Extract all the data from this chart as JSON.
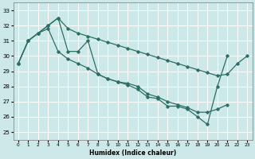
{
  "xlabel": "Humidex (Indice chaleur)",
  "xlim": [
    -0.5,
    23.5
  ],
  "ylim": [
    24.5,
    33.5
  ],
  "yticks": [
    25,
    26,
    27,
    28,
    29,
    30,
    31,
    32,
    33
  ],
  "xticks": [
    0,
    1,
    2,
    3,
    4,
    5,
    6,
    7,
    8,
    9,
    10,
    11,
    12,
    13,
    14,
    15,
    16,
    17,
    18,
    19,
    20,
    21,
    22,
    23
  ],
  "color": "#2d6e63",
  "bg_color": "#cce8e8",
  "grid_color": "#ffffff",
  "series": [
    {
      "x": [
        0,
        1,
        2,
        3,
        4,
        5,
        6,
        7,
        8,
        9,
        10,
        11,
        12,
        13,
        14,
        15,
        16,
        17,
        18,
        19,
        20,
        21,
        22,
        23
      ],
      "y": [
        29.5,
        31.0,
        31.5,
        32.0,
        32.5,
        31.8,
        31.5,
        31.3,
        31.1,
        30.9,
        30.7,
        30.5,
        30.3,
        30.1,
        29.9,
        29.7,
        29.5,
        29.3,
        29.1,
        28.9,
        28.7,
        28.8,
        29.5,
        30.0
      ]
    },
    {
      "x": [
        0,
        1,
        2,
        3,
        4,
        5,
        6,
        7,
        8,
        9,
        10,
        11,
        12,
        13,
        14,
        15,
        16,
        17,
        18,
        19,
        20,
        21
      ],
      "y": [
        29.5,
        31.0,
        31.5,
        31.8,
        30.3,
        29.8,
        29.5,
        29.2,
        28.8,
        28.5,
        28.3,
        28.2,
        28.0,
        27.5,
        27.3,
        27.0,
        26.8,
        26.6,
        26.3,
        26.3,
        26.5,
        26.8
      ]
    },
    {
      "x": [
        0,
        1,
        2,
        3,
        4,
        5,
        6,
        7,
        8,
        9,
        10,
        11,
        12,
        13,
        14,
        15,
        16,
        17,
        18,
        19,
        20,
        21
      ],
      "y": [
        29.5,
        31.0,
        31.5,
        32.0,
        32.5,
        30.3,
        30.3,
        31.0,
        28.8,
        28.5,
        28.3,
        28.1,
        27.8,
        27.3,
        27.2,
        26.7,
        26.7,
        26.5,
        26.0,
        25.5,
        28.0,
        30.0
      ]
    }
  ]
}
